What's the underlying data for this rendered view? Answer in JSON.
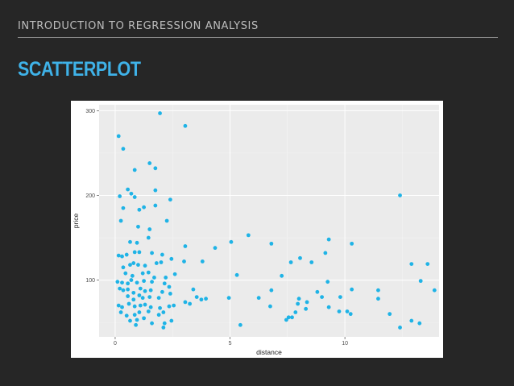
{
  "slide": {
    "header": "INTRODUCTION TO REGRESSION ANALYSIS",
    "title": "SCATTERPLOT"
  },
  "colors": {
    "background": "#262626",
    "title": "#3fb2e8",
    "point": "#1fb3e6",
    "panel": "#ebebeb"
  },
  "chart_data": {
    "type": "scatter",
    "xlabel": "distance",
    "ylabel": "price",
    "xlim": [
      -0.7,
      14.1
    ],
    "ylim": [
      33,
      307
    ],
    "x_ticks": [
      0,
      5,
      10
    ],
    "y_ticks": [
      100,
      200,
      300
    ],
    "x_tick_labels": [
      "0",
      "5",
      "10"
    ],
    "y_tick_labels": [
      "100",
      "200",
      "300"
    ],
    "grid": true,
    "legend": "none",
    "points": [
      [
        0.15,
        270
      ],
      [
        0.35,
        255
      ],
      [
        1.95,
        297
      ],
      [
        3.05,
        282
      ],
      [
        12.4,
        200
      ],
      [
        0.85,
        230
      ],
      [
        1.5,
        238
      ],
      [
        1.75,
        232
      ],
      [
        0.55,
        207
      ],
      [
        0.2,
        199
      ],
      [
        0.7,
        202
      ],
      [
        0.85,
        198
      ],
      [
        1.75,
        206
      ],
      [
        2.4,
        195
      ],
      [
        0.35,
        185
      ],
      [
        1.05,
        183
      ],
      [
        1.25,
        186
      ],
      [
        1.75,
        188
      ],
      [
        0.25,
        170
      ],
      [
        2.25,
        170
      ],
      [
        1.0,
        163
      ],
      [
        1.5,
        160
      ],
      [
        1.45,
        150
      ],
      [
        0.65,
        145
      ],
      [
        0.95,
        144
      ],
      [
        3.05,
        140
      ],
      [
        4.35,
        138
      ],
      [
        5.05,
        145
      ],
      [
        5.8,
        153
      ],
      [
        6.8,
        143
      ],
      [
        9.3,
        148
      ],
      [
        10.3,
        143
      ],
      [
        0.15,
        129
      ],
      [
        0.3,
        128
      ],
      [
        0.5,
        130
      ],
      [
        0.85,
        133
      ],
      [
        1.05,
        133
      ],
      [
        1.6,
        132
      ],
      [
        2.05,
        130
      ],
      [
        2.45,
        125
      ],
      [
        3.0,
        122
      ],
      [
        3.8,
        122
      ],
      [
        7.65,
        121
      ],
      [
        8.05,
        126
      ],
      [
        8.55,
        121
      ],
      [
        9.15,
        132
      ],
      [
        12.9,
        119
      ],
      [
        13.6,
        119
      ],
      [
        0.35,
        115
      ],
      [
        0.65,
        118
      ],
      [
        0.8,
        120
      ],
      [
        1.0,
        118
      ],
      [
        1.3,
        117
      ],
      [
        1.8,
        120
      ],
      [
        2.0,
        121
      ],
      [
        0.45,
        108
      ],
      [
        0.75,
        105
      ],
      [
        1.2,
        108
      ],
      [
        1.45,
        109
      ],
      [
        1.7,
        103
      ],
      [
        2.2,
        103
      ],
      [
        2.6,
        107
      ],
      [
        5.3,
        106
      ],
      [
        7.25,
        105
      ],
      [
        0.1,
        98
      ],
      [
        0.3,
        97
      ],
      [
        0.55,
        96
      ],
      [
        0.7,
        100
      ],
      [
        0.95,
        97
      ],
      [
        1.25,
        99
      ],
      [
        1.6,
        98
      ],
      [
        2.15,
        96
      ],
      [
        2.35,
        92
      ],
      [
        9.25,
        98
      ],
      [
        13.3,
        99
      ],
      [
        0.2,
        90
      ],
      [
        0.35,
        88
      ],
      [
        0.55,
        89
      ],
      [
        0.8,
        85
      ],
      [
        1.1,
        90
      ],
      [
        1.3,
        87
      ],
      [
        1.55,
        88
      ],
      [
        2.05,
        86
      ],
      [
        2.4,
        84
      ],
      [
        3.4,
        89
      ],
      [
        6.8,
        88
      ],
      [
        8.8,
        86
      ],
      [
        10.3,
        89
      ],
      [
        11.45,
        88
      ],
      [
        13.9,
        88
      ],
      [
        0.55,
        81
      ],
      [
        0.8,
        77
      ],
      [
        1.05,
        82
      ],
      [
        1.2,
        79
      ],
      [
        1.5,
        80
      ],
      [
        1.9,
        79
      ],
      [
        3.55,
        80
      ],
      [
        3.75,
        77
      ],
      [
        3.95,
        78
      ],
      [
        4.95,
        79
      ],
      [
        6.25,
        79
      ],
      [
        8.0,
        78
      ],
      [
        8.35,
        74
      ],
      [
        9.0,
        80
      ],
      [
        9.8,
        80
      ],
      [
        11.45,
        78
      ],
      [
        0.15,
        70
      ],
      [
        0.3,
        68
      ],
      [
        0.6,
        72
      ],
      [
        0.85,
        69
      ],
      [
        1.1,
        70
      ],
      [
        1.3,
        71
      ],
      [
        1.55,
        68
      ],
      [
        1.95,
        67
      ],
      [
        2.35,
        69
      ],
      [
        2.55,
        70
      ],
      [
        3.05,
        74
      ],
      [
        3.25,
        72
      ],
      [
        6.75,
        69
      ],
      [
        7.95,
        72
      ],
      [
        8.3,
        66
      ],
      [
        9.3,
        68
      ],
      [
        9.75,
        63
      ],
      [
        10.1,
        63
      ],
      [
        10.25,
        60
      ],
      [
        0.25,
        62
      ],
      [
        0.5,
        58
      ],
      [
        0.85,
        59
      ],
      [
        1.05,
        62
      ],
      [
        1.45,
        63
      ],
      [
        1.9,
        59
      ],
      [
        2.1,
        62
      ],
      [
        11.95,
        60
      ],
      [
        0.65,
        52
      ],
      [
        0.95,
        53
      ],
      [
        1.25,
        55
      ],
      [
        1.6,
        49
      ],
      [
        2.15,
        49
      ],
      [
        2.45,
        52
      ],
      [
        7.85,
        62
      ],
      [
        7.55,
        56
      ],
      [
        7.45,
        53
      ],
      [
        5.45,
        47
      ],
      [
        12.4,
        44
      ],
      [
        12.9,
        52
      ],
      [
        13.25,
        49
      ],
      [
        0.9,
        47
      ],
      [
        2.1,
        44
      ],
      [
        7.7,
        56
      ]
    ]
  }
}
